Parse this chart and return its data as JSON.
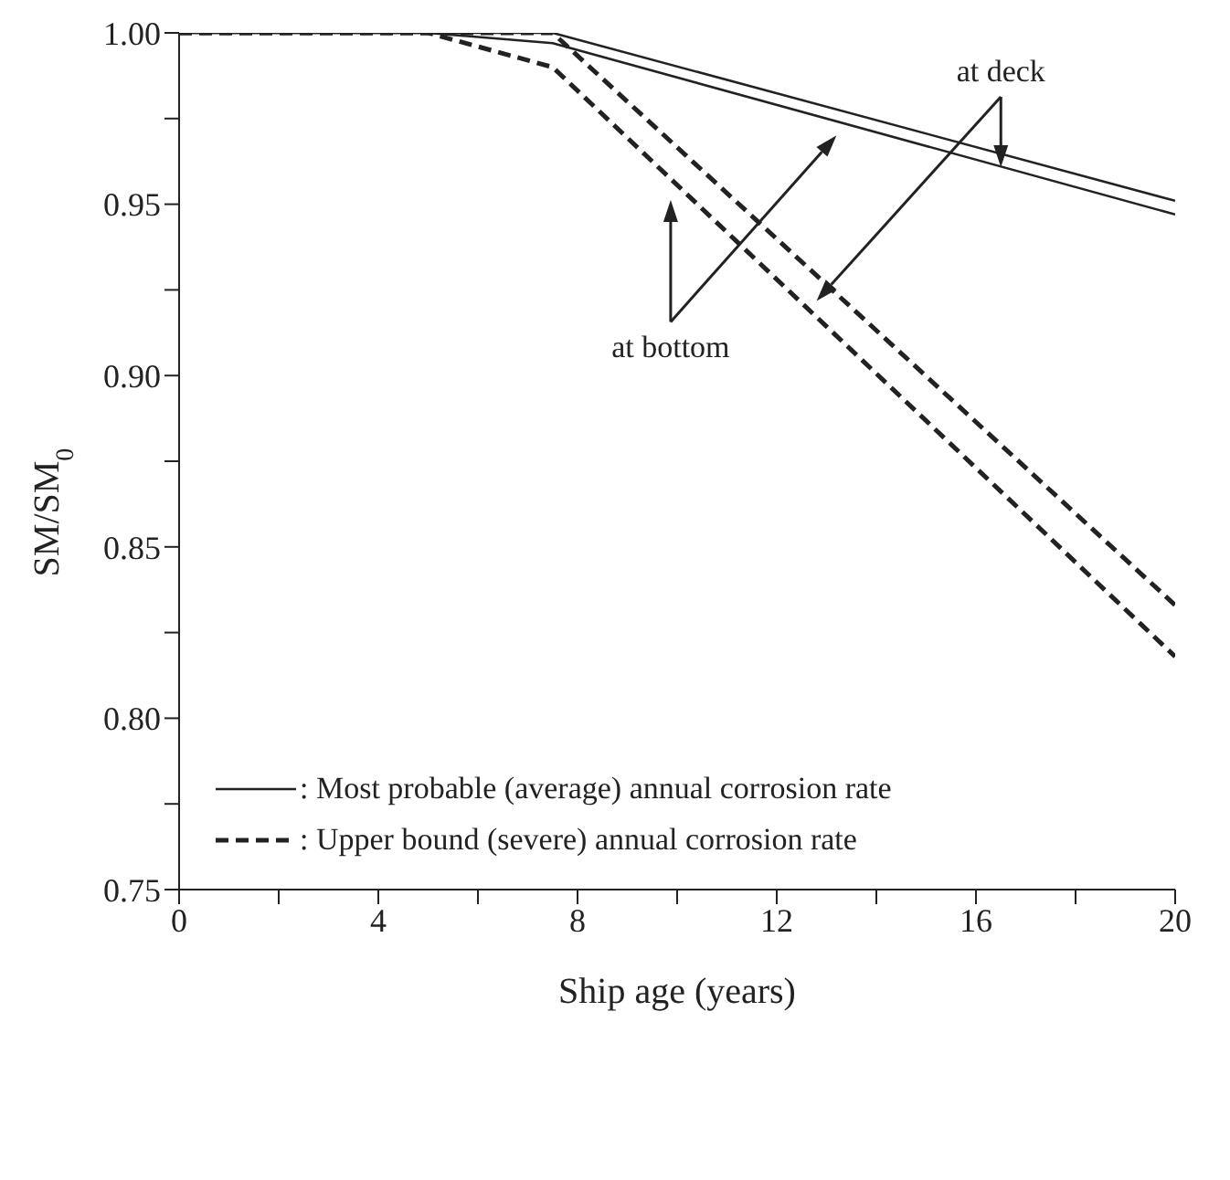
{
  "chart_data": {
    "type": "line",
    "xlabel": "Ship age (years)",
    "ylabel": "SM/SM$_{0}$",
    "xlim": [
      0,
      20
    ],
    "ylim": [
      0.75,
      1.0
    ],
    "xticks": [
      0,
      {
        "value": 2,
        "label": null
      },
      4,
      {
        "value": 6,
        "label": null
      },
      8,
      {
        "value": 10,
        "label": null
      },
      12,
      {
        "value": 14,
        "label": null
      },
      16,
      {
        "value": 18,
        "label": null
      },
      20
    ],
    "yticks": [
      0.75,
      {
        "value": 0.775,
        "label": null
      },
      {
        "value": 0.8,
        "label": "0.80"
      },
      {
        "value": 0.825,
        "label": null
      },
      0.85,
      {
        "value": 0.875,
        "label": null
      },
      {
        "value": 0.9,
        "label": "0.90"
      },
      {
        "value": 0.925,
        "label": null
      },
      0.95,
      {
        "value": 0.975,
        "label": null
      },
      {
        "value": 1.0,
        "label": "1.00"
      }
    ],
    "legend": "bottom left",
    "marker": "none",
    "series": [
      {
        "name": ": Most probable (average) annual corrosion rate",
        "color": "#222222",
        "line_style": "solid",
        "x": [
          0,
          7.5,
          20
        ],
        "values": [
          1.0,
          1.0,
          0.951
        ]
      },
      {
        "color": "#222222",
        "line_style": "solid",
        "x": [
          0,
          5,
          7.5,
          20
        ],
        "values": [
          1.0,
          1.0,
          0.997,
          0.947
        ]
      },
      {
        "name": ": Upper bound (severe) annual corrosion rate",
        "color": "#222222",
        "line_style": "dashed",
        "x": [
          0,
          7.5,
          20
        ],
        "values": [
          1.0,
          1.0,
          0.833
        ]
      },
      {
        "color": "#222222",
        "line_style": "dashed",
        "x": [
          0,
          5,
          7.5,
          20
        ],
        "values": [
          1.0,
          1.0,
          0.99,
          0.818
        ]
      }
    ],
    "annotations": [
      {
        "text": "at deck",
        "x": 16.5,
        "y": 0.965
      },
      "at bottom"
    ]
  }
}
